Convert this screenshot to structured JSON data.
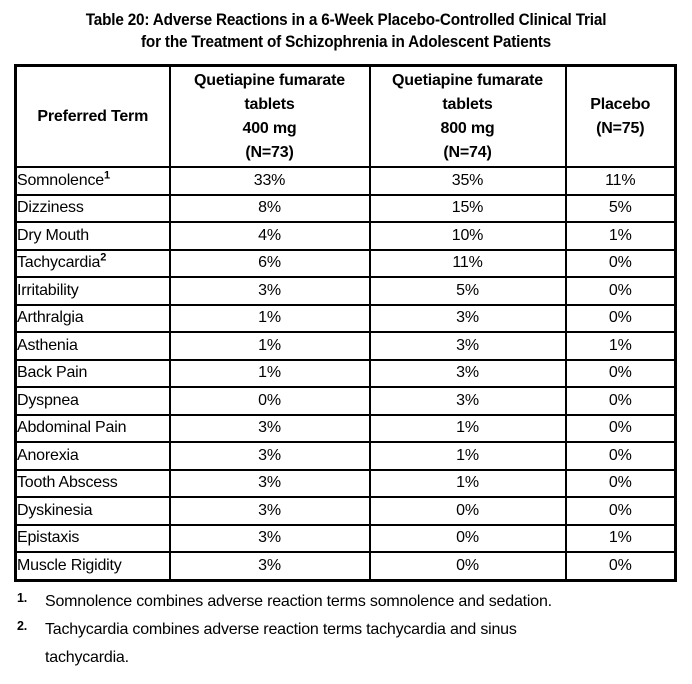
{
  "title": {
    "line1": "Table 20: Adverse Reactions in a 6-Week Placebo-Controlled Clinical Trial",
    "line2": "for the Treatment of Schizophrenia in Adolescent Patients"
  },
  "table": {
    "headers": [
      "Preferred Term",
      "Quetiapine fumarate\ntablets\n400 mg\n(N=73)",
      "Quetiapine fumarate\ntablets\n800 mg\n(N=74)",
      "Placebo\n(N=75)"
    ],
    "rows": [
      {
        "term": "Somnolence",
        "sup": "1",
        "values": [
          "33%",
          "35%",
          "11%"
        ]
      },
      {
        "term": "Dizziness",
        "sup": "",
        "values": [
          "8%",
          "15%",
          "5%"
        ]
      },
      {
        "term": "Dry Mouth",
        "sup": "",
        "values": [
          "4%",
          "10%",
          "1%"
        ]
      },
      {
        "term": "Tachycardia",
        "sup": "2",
        "values": [
          "6%",
          "11%",
          "0%"
        ]
      },
      {
        "term": "Irritability",
        "sup": "",
        "values": [
          "3%",
          "5%",
          "0%"
        ]
      },
      {
        "term": "Arthralgia",
        "sup": "",
        "values": [
          "1%",
          "3%",
          "0%"
        ]
      },
      {
        "term": "Asthenia",
        "sup": "",
        "values": [
          "1%",
          "3%",
          "1%"
        ]
      },
      {
        "term": "Back Pain",
        "sup": "",
        "values": [
          "1%",
          "3%",
          "0%"
        ]
      },
      {
        "term": "Dyspnea",
        "sup": "",
        "values": [
          "0%",
          "3%",
          "0%"
        ]
      },
      {
        "term": "Abdominal Pain",
        "sup": "",
        "values": [
          "3%",
          "1%",
          "0%"
        ]
      },
      {
        "term": "Anorexia",
        "sup": "",
        "values": [
          "3%",
          "1%",
          "0%"
        ]
      },
      {
        "term": "Tooth Abscess",
        "sup": "",
        "values": [
          "3%",
          "1%",
          "0%"
        ]
      },
      {
        "term": "Dyskinesia",
        "sup": "",
        "values": [
          "3%",
          "0%",
          "0%"
        ]
      },
      {
        "term": "Epistaxis",
        "sup": "",
        "values": [
          "3%",
          "0%",
          "1%"
        ]
      },
      {
        "term": "Muscle Rigidity",
        "sup": "",
        "values": [
          "3%",
          "0%",
          "0%"
        ]
      }
    ]
  },
  "footnotes": [
    {
      "marker": "1.",
      "text": "Somnolence combines adverse reaction terms somnolence and sedation."
    },
    {
      "marker": "2.",
      "text": "Tachycardia combines adverse reaction terms tachycardia and sinus tachycardia."
    }
  ],
  "colors": {
    "text": "#000000",
    "background": "#ffffff",
    "border": "#000000"
  }
}
